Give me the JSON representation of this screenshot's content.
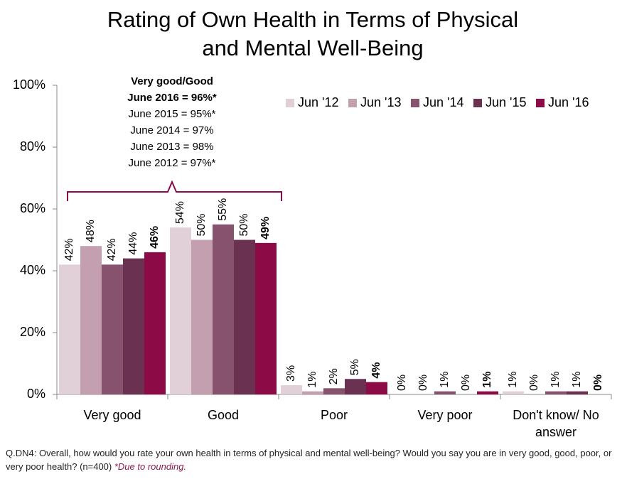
{
  "chart_data": {
    "type": "bar",
    "title": [
      "Rating of Own Health in Terms of Physical",
      "and Mental Well-Being"
    ],
    "categories": [
      "Very good",
      "Good",
      "Poor",
      "Very poor",
      "Don't know/ No answer"
    ],
    "series": [
      {
        "name": "Jun '12",
        "color": "#e2d0d9",
        "values": [
          42,
          54,
          3,
          0,
          1
        ],
        "value_labels": [
          "42%",
          "54%",
          "3%",
          "0%",
          "1%"
        ]
      },
      {
        "name": "Jun '13",
        "color": "#c39fb0",
        "values": [
          48,
          50,
          1,
          0,
          0
        ],
        "value_labels": [
          "48%",
          "50%",
          "1%",
          "0%",
          "0%"
        ]
      },
      {
        "name": "Jun '14",
        "color": "#86526e",
        "values": [
          42,
          55,
          2,
          1,
          1
        ],
        "value_labels": [
          "42%",
          "55%",
          "2%",
          "1%",
          "1%"
        ]
      },
      {
        "name": "Jun '15",
        "color": "#6a3150",
        "values": [
          44,
          50,
          5,
          0,
          1
        ],
        "value_labels": [
          "44%",
          "50%",
          "5%",
          "0%",
          "1%"
        ]
      },
      {
        "name": "Jun '16",
        "color": "#8c0a46",
        "values": [
          46,
          49,
          4,
          1,
          0
        ],
        "value_labels": [
          "46%",
          "49%",
          "4%",
          "1%",
          "0%"
        ]
      }
    ],
    "ylim": [
      0,
      100
    ],
    "yticks": [
      {
        "value": 0,
        "label": "0%"
      },
      {
        "value": 20,
        "label": "20%"
      },
      {
        "value": 40,
        "label": "40%"
      },
      {
        "value": 60,
        "label": "60%"
      },
      {
        "value": 80,
        "label": "80%"
      },
      {
        "value": 100,
        "label": "100%"
      }
    ],
    "grid": false,
    "legend": "top-right",
    "annotation": [
      "Very good/Good",
      "June 2016 = 96%*",
      "June 2015 = 95%*",
      "June 2014 = 97%",
      "June 2013 = 98%",
      "June 2012 = 97%*"
    ],
    "footnote": "Q.DN4: Overall, how would you rate your own health in terms of physical and mental well-being? Would you say you are in very good, good, poor, or very poor health? (n=400)",
    "note": "*Due to rounding."
  }
}
